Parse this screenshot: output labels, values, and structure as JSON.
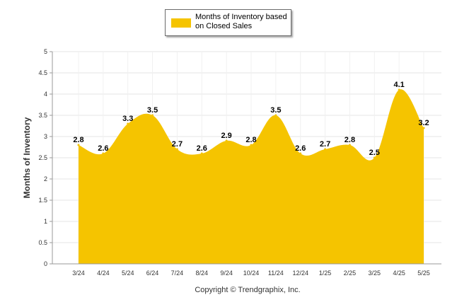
{
  "chart_data": {
    "type": "area",
    "categories": [
      "3/24",
      "4/24",
      "5/24",
      "6/24",
      "7/24",
      "8/24",
      "9/24",
      "10/24",
      "11/24",
      "12/24",
      "1/25",
      "2/25",
      "3/25",
      "4/25",
      "5/25"
    ],
    "series": [
      {
        "name": "Months of Inventory based on Closed Sales",
        "values": [
          2.8,
          2.6,
          3.3,
          3.5,
          2.7,
          2.6,
          2.9,
          2.8,
          3.5,
          2.6,
          2.7,
          2.8,
          2.5,
          4.1,
          3.2
        ],
        "color": "#f5c400"
      }
    ],
    "ylabel": "Months of Inventory",
    "xlabel": "",
    "ylim": [
      0,
      5
    ],
    "yticks": [
      "0",
      "0.5",
      "1",
      "1.5",
      "2",
      "2.5",
      "3",
      "3.5",
      "4",
      "4.5",
      "5"
    ],
    "data_labels": [
      "2.8",
      "2.6",
      "3.3",
      "3.5",
      "2.7",
      "2.6",
      "2.9",
      "2.8",
      "3.5",
      "2.6",
      "2.7",
      "2.8",
      "2.5",
      "4.1",
      "3.2"
    ],
    "grid": true,
    "legend_position": "top-center"
  },
  "legend": {
    "label": "Months of Inventory based on Closed Sales",
    "color": "#f5c400"
  },
  "footer": {
    "copyright": "Copyright © Trendgraphix, Inc."
  }
}
